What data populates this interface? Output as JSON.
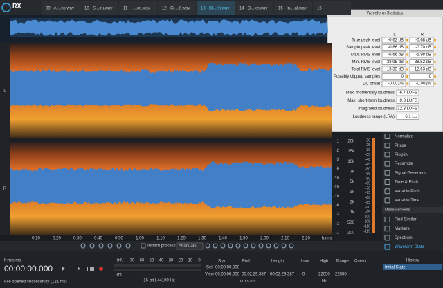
{
  "app": {
    "logo": "RX"
  },
  "tabs": [
    "09 - A....ns.wav",
    "10 - S....ru.wav",
    "11 - I....ce.wav",
    "12 - Cl....t).wav",
    "13 - Bl....s).wav",
    "14 - D....er.wav",
    "15 - In....al.wav",
    "16"
  ],
  "channels": [
    "L",
    "R"
  ],
  "ruler": {
    "labels": [
      "0:10",
      "0:20",
      "0:30",
      "0:40",
      "0:50",
      "1:00",
      "1:10",
      "1:20",
      "1:30",
      "1:40",
      "1:50",
      "2:00",
      "2:10",
      "2:20"
    ],
    "unit": "h:m:s"
  },
  "scales": {
    "db": [
      "-1",
      "-2",
      "-3",
      "-6",
      "-10",
      "-20",
      "-10",
      "-6",
      "-3",
      "-2",
      "-1"
    ],
    "hz": [
      "20k",
      "15k",
      "10k",
      "7k",
      "5k",
      "3k",
      "2k",
      "1k",
      "500",
      "200"
    ],
    "color": [
      "-20",
      "-25",
      "-30",
      "-35",
      "-40",
      "-45",
      "-50",
      "-55",
      "-60",
      "-65",
      "-70",
      "-75",
      "-80",
      "-85",
      "-90",
      "-95",
      "-100",
      "-105",
      "-110",
      "-115"
    ]
  },
  "stats": {
    "title": "Waveform Statistics",
    "columns": [
      "L",
      "R"
    ],
    "rows": [
      [
        "True peak level",
        "-0.62 dB",
        "-0.68 dB"
      ],
      [
        "Sample peak level",
        "-0.66 dB",
        "-0.70 dB"
      ],
      [
        "Max. RMS level",
        "-6.66 dB",
        "-5.98 dB"
      ],
      [
        "Min. RMS level",
        "-38.95 dB",
        "-38.52 dB"
      ],
      [
        "Total RMS level",
        "-13.33 dB",
        "-12.63 dB"
      ],
      [
        "Possibly clipped samples",
        "0",
        "0"
      ],
      [
        "DC offset",
        "-0.001%",
        "-0.002%"
      ]
    ],
    "loudness": [
      [
        "Max. momentary loudness",
        "-6.7 LUFS"
      ],
      [
        "Max. short-term loudness",
        "-9.3 LUFS"
      ],
      [
        "Integrated loudness",
        "-12.3 LUFS"
      ],
      [
        "Loudness range (LRA)",
        "6.1 LU"
      ]
    ]
  },
  "modules": {
    "items": [
      "Normalize",
      "Phase",
      "Plug-in",
      "Resample",
      "Signal Generator",
      "Time & Pitch",
      "Variable Pitch",
      "Variable Time"
    ],
    "header": "Measurements",
    "measurements": [
      "Find Similar",
      "Markers",
      "Spectrum",
      "Waveform Stats"
    ]
  },
  "toolbar": {
    "instant": "Instant process",
    "mode": "Attenuate"
  },
  "transport": {
    "format": "h:m:s.ms",
    "time": "00:00:00.000",
    "status": "File opened successfully (121 ms)"
  },
  "meter": {
    "left": "-Inf.",
    "right": "-Inf.",
    "scale": [
      "-70",
      "-60",
      "-50",
      "-40",
      "-30",
      "-20",
      "-10",
      "0"
    ],
    "format": "16-bit | 44100 Hz"
  },
  "selection": {
    "headers": [
      "Start",
      "End",
      "Length",
      "Low",
      "High",
      "Range",
      "Cursor"
    ],
    "sel": {
      "label": "Sel",
      "start": "00:00:00.000"
    },
    "view": {
      "label": "View",
      "start": "00:00:00.000",
      "end": "00:02:29.387",
      "length": "00:02:29.387",
      "low": "0",
      "high": "22050",
      "range": "22050"
    },
    "timeUnit": "h:m:s.ms",
    "freqUnit": "Hz"
  },
  "history": {
    "title": "History",
    "items": [
      "Initial State"
    ]
  }
}
